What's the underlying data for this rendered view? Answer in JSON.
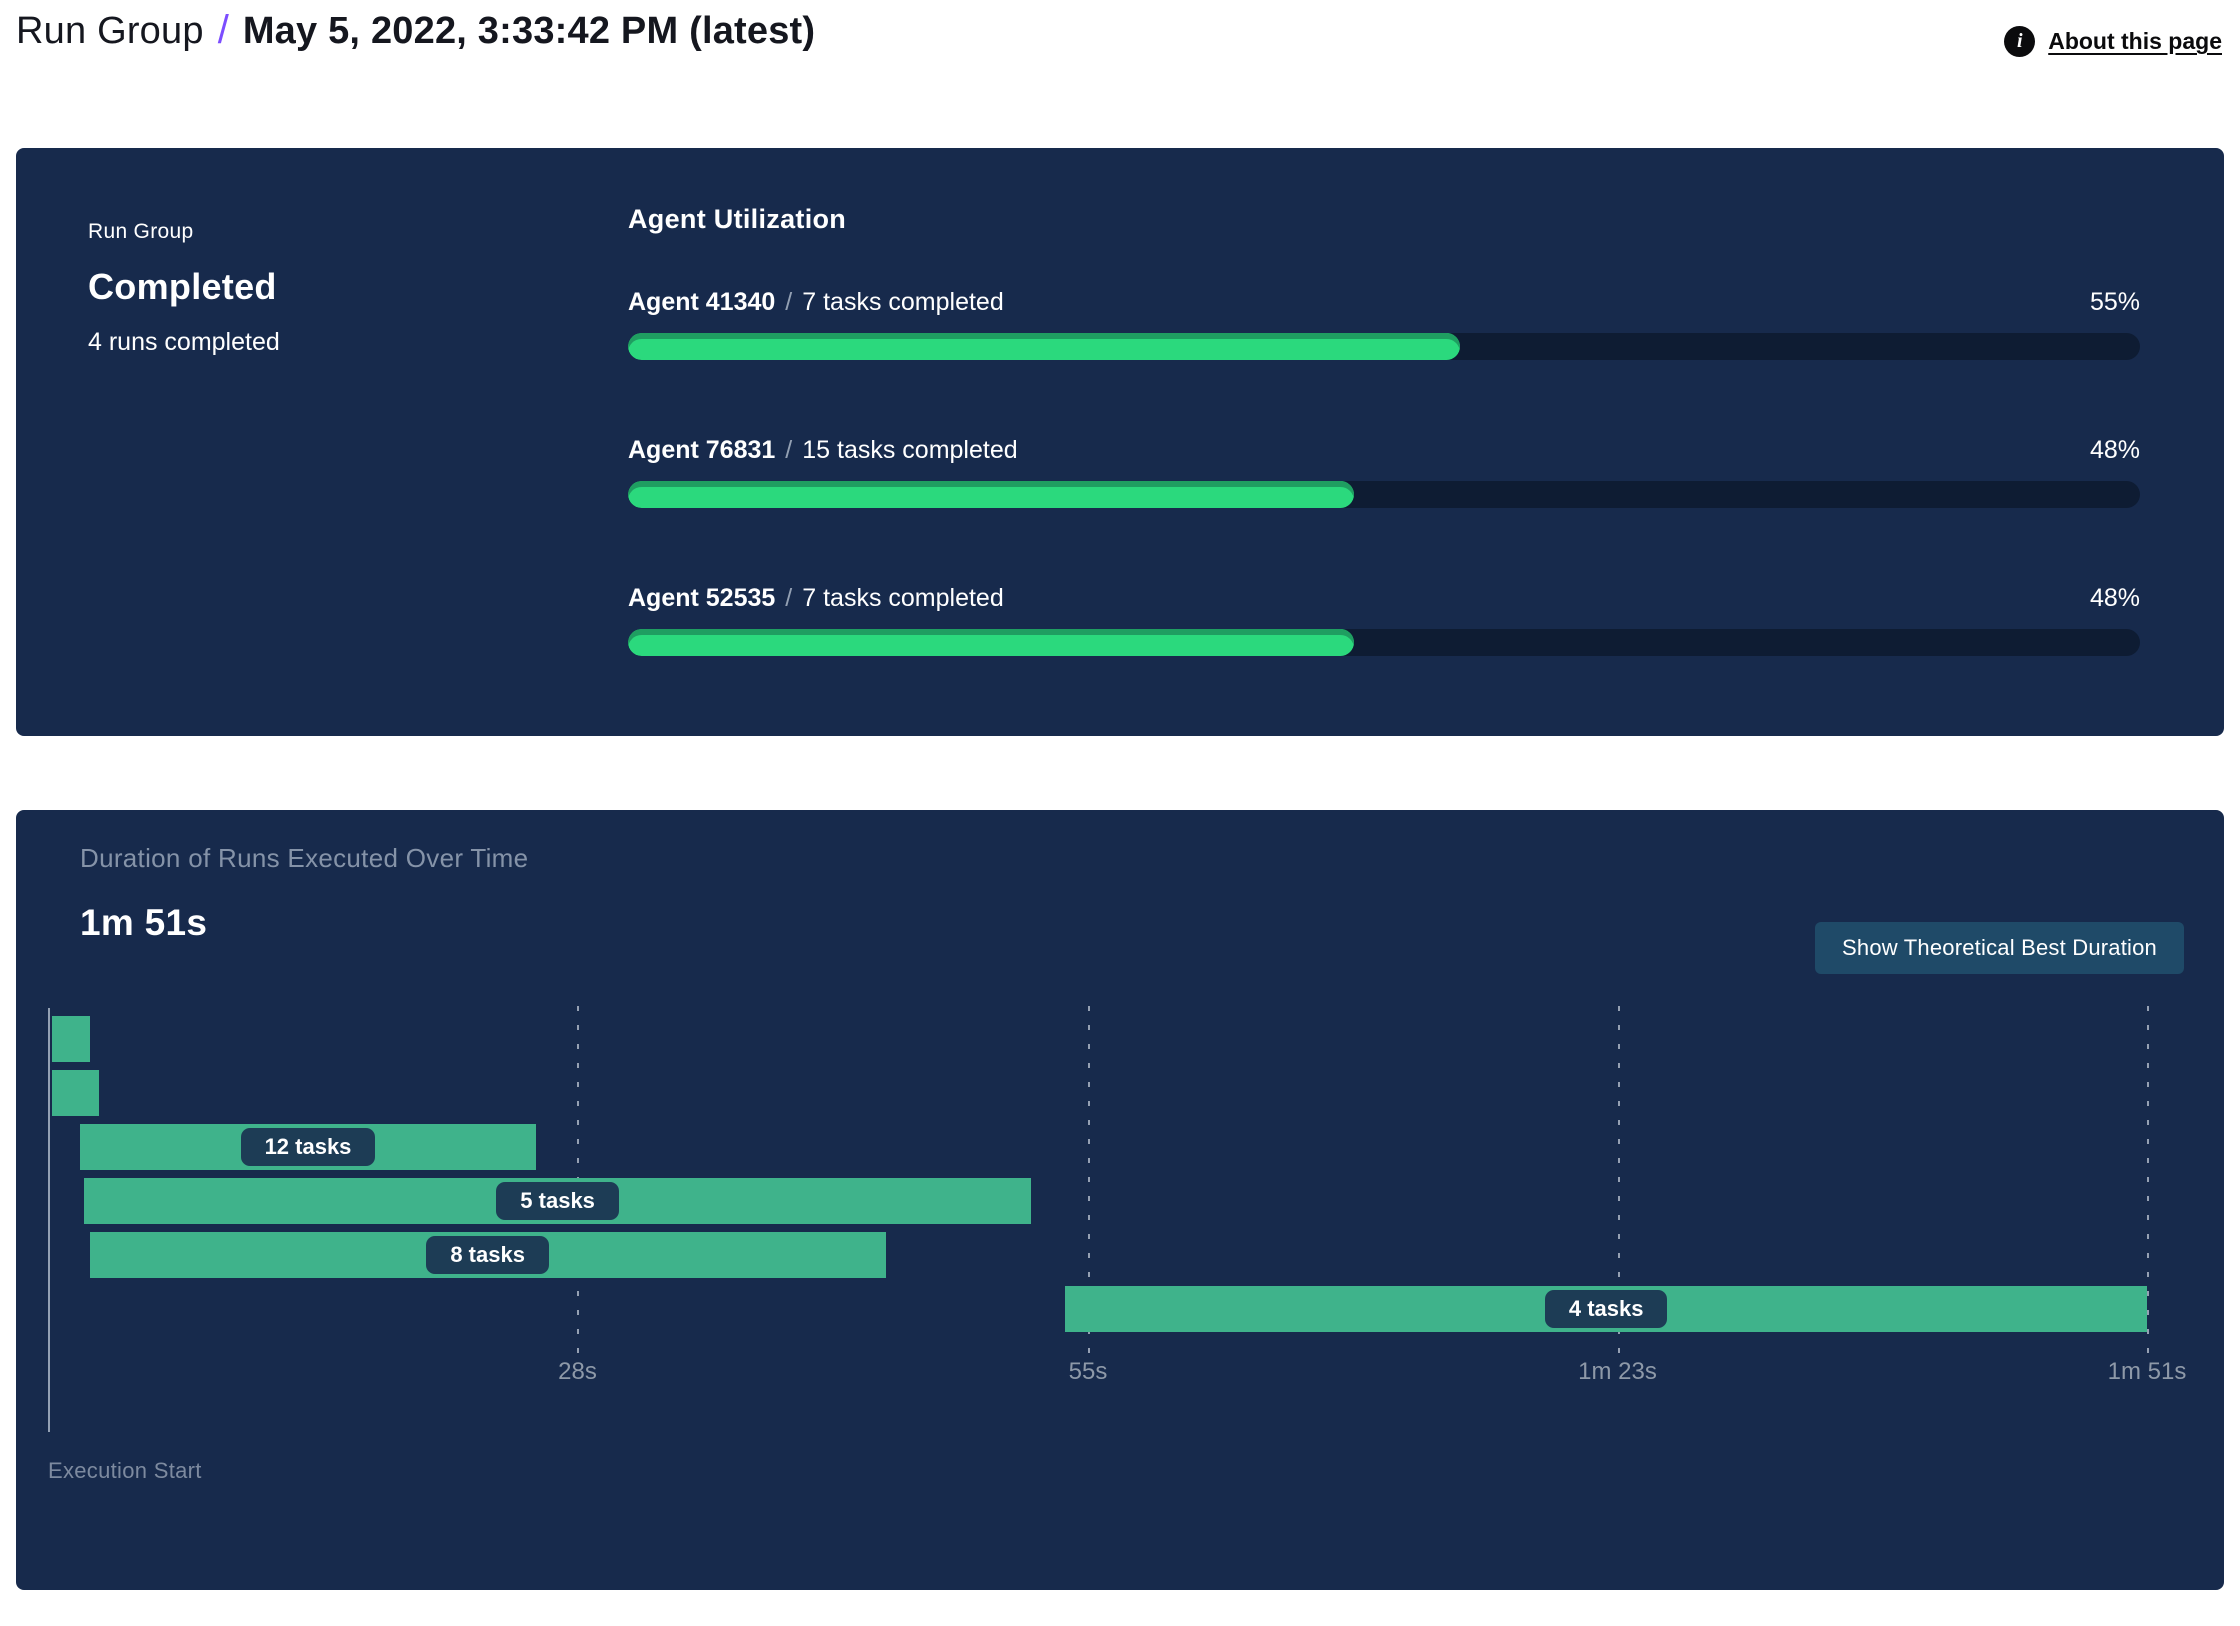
{
  "header": {
    "breadcrumb_root": "Run Group",
    "separator": "/",
    "title": "May 5, 2022, 3:33:42 PM (latest)",
    "about_link": "About this page",
    "info_icon_glyph": "i"
  },
  "summary_card": {
    "label": "Run Group",
    "status": "Completed",
    "runs_completed": "4 runs completed"
  },
  "agent_utilization": {
    "title": "Agent Utilization",
    "separator": "/",
    "agents": [
      {
        "name": "Agent 41340",
        "tasks": "7 tasks completed",
        "percent": 55,
        "percent_label": "55%"
      },
      {
        "name": "Agent 76831",
        "tasks": "15 tasks completed",
        "percent": 48,
        "percent_label": "48%"
      },
      {
        "name": "Agent 52535",
        "tasks": "7 tasks completed",
        "percent": 48,
        "percent_label": "48%"
      }
    ]
  },
  "duration_card": {
    "title": "Duration of Runs Executed Over Time",
    "total_duration": "1m 51s",
    "button_label": "Show Theoretical Best Duration",
    "execution_start_label": "Execution Start"
  },
  "colors": {
    "card_background": "#172a4c",
    "progress_green": "#2bd97d",
    "progress_track": "#0e1c33",
    "gantt_green": "#3fb38b",
    "pill_background": "#1d3c55",
    "button_background": "#1f4a68",
    "breadcrumb_purple": "#7c4dff",
    "muted_text": "#8593a8"
  },
  "chart_data": [
    {
      "type": "bar",
      "title": "Agent Utilization",
      "categories": [
        "Agent 41340 / 7 tasks completed",
        "Agent 76831 / 15 tasks completed",
        "Agent 52535 / 7 tasks completed"
      ],
      "values": [
        55,
        48,
        48
      ],
      "unit": "%",
      "xlim": [
        0,
        100
      ],
      "orientation": "horizontal"
    },
    {
      "type": "gantt",
      "title": "Duration of Runs Executed Over Time",
      "total_duration_label": "1m 51s",
      "total_duration_seconds": 111,
      "xlabel": "Execution Start",
      "ticks": [
        {
          "label": "28s",
          "seconds": 28
        },
        {
          "label": "55s",
          "seconds": 55
        },
        {
          "label": "1m 23s",
          "seconds": 83
        },
        {
          "label": "1m 51s",
          "seconds": 111
        }
      ],
      "runs": [
        {
          "start_seconds": 0.2,
          "end_seconds": 2.2,
          "label": ""
        },
        {
          "start_seconds": 0.2,
          "end_seconds": 2.7,
          "label": ""
        },
        {
          "start_seconds": 1.7,
          "end_seconds": 25.8,
          "label": "12 tasks"
        },
        {
          "start_seconds": 1.9,
          "end_seconds": 52.0,
          "label": "5 tasks"
        },
        {
          "start_seconds": 2.2,
          "end_seconds": 44.3,
          "label": "8 tasks"
        },
        {
          "start_seconds": 53.8,
          "end_seconds": 111.0,
          "label": "4 tasks"
        }
      ]
    }
  ]
}
